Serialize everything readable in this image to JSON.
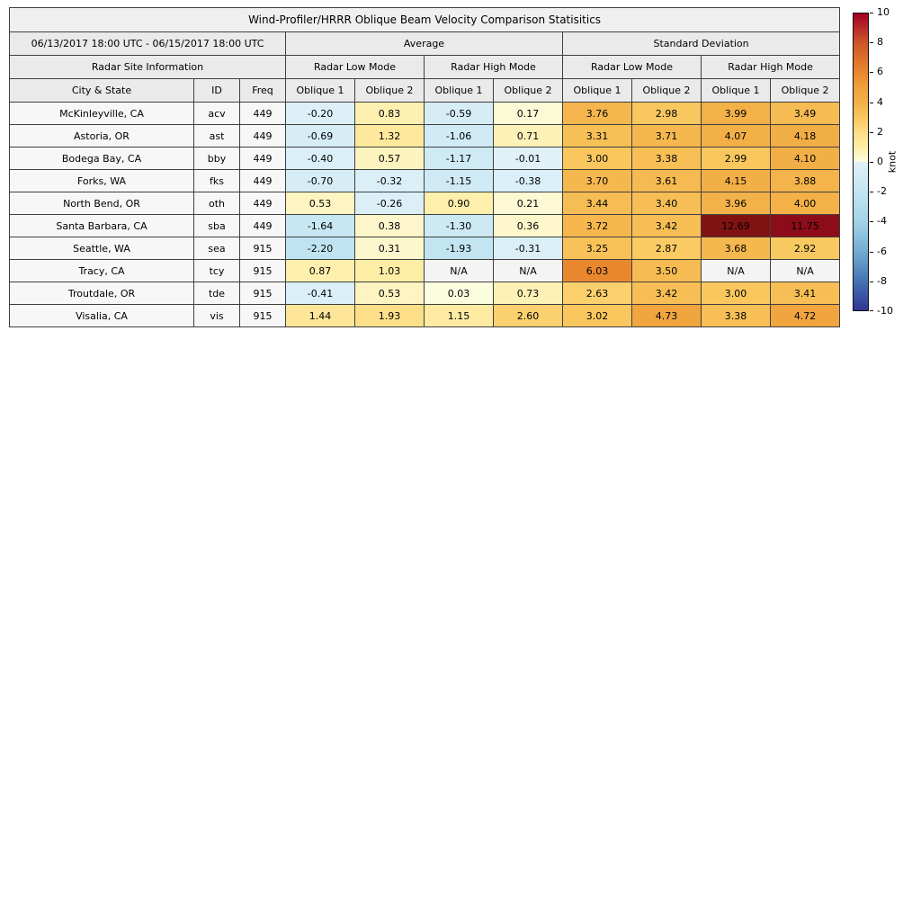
{
  "chart_data": {
    "type": "table",
    "title": "Wind-Profiler/HRRR Oblique Beam Velocity Comparison Statisitics",
    "date_range": "06/13/2017 18:00 UTC - 06/15/2017 18:00 UTC",
    "site_info_header": "Radar Site Information",
    "group_headers": [
      "Average",
      "Standard Deviation"
    ],
    "mode_headers": [
      "Radar Low Mode",
      "Radar High Mode",
      "Radar Low Mode",
      "Radar High Mode"
    ],
    "column_headers": [
      "City & State",
      "ID",
      "Freq",
      "Oblique 1",
      "Oblique 2",
      "Oblique 1",
      "Oblique 2",
      "Oblique 1",
      "Oblique 2",
      "Oblique 1",
      "Oblique 2"
    ],
    "na_label": "N/A",
    "value_format_decimals": 2,
    "rows": [
      {
        "city": "McKinleyville, CA",
        "id": "acv",
        "freq": "449",
        "values": [
          -0.2,
          0.83,
          -0.59,
          0.17,
          3.76,
          2.98,
          3.99,
          3.49
        ]
      },
      {
        "city": "Astoria, OR",
        "id": "ast",
        "freq": "449",
        "values": [
          -0.69,
          1.32,
          -1.06,
          0.71,
          3.31,
          3.71,
          4.07,
          4.18
        ]
      },
      {
        "city": "Bodega Bay, CA",
        "id": "bby",
        "freq": "449",
        "values": [
          -0.4,
          0.57,
          -1.17,
          -0.01,
          3.0,
          3.38,
          2.99,
          4.1
        ]
      },
      {
        "city": "Forks, WA",
        "id": "fks",
        "freq": "449",
        "values": [
          -0.7,
          -0.32,
          -1.15,
          -0.38,
          3.7,
          3.61,
          4.15,
          3.88
        ]
      },
      {
        "city": "North Bend, OR",
        "id": "oth",
        "freq": "449",
        "values": [
          0.53,
          -0.26,
          0.9,
          0.21,
          3.44,
          3.4,
          3.96,
          4.0
        ]
      },
      {
        "city": "Santa Barbara, CA",
        "id": "sba",
        "freq": "449",
        "values": [
          -1.64,
          0.38,
          -1.3,
          0.36,
          3.72,
          3.42,
          12.69,
          11.75
        ]
      },
      {
        "city": "Seattle, WA",
        "id": "sea",
        "freq": "915",
        "values": [
          -2.2,
          0.31,
          -1.93,
          -0.31,
          3.25,
          2.87,
          3.68,
          2.92
        ]
      },
      {
        "city": "Tracy, CA",
        "id": "tcy",
        "freq": "915",
        "values": [
          0.87,
          1.03,
          null,
          null,
          6.03,
          3.5,
          null,
          null
        ]
      },
      {
        "city": "Troutdale, OR",
        "id": "tde",
        "freq": "915",
        "values": [
          -0.41,
          0.53,
          0.03,
          0.73,
          2.63,
          3.42,
          3.0,
          3.41
        ]
      },
      {
        "city": "Visalia, CA",
        "id": "vis",
        "freq": "915",
        "values": [
          1.44,
          1.93,
          1.15,
          2.6,
          3.02,
          4.73,
          3.38,
          4.72
        ]
      }
    ],
    "colorbar": {
      "label": "knot",
      "min": -10,
      "max": 10,
      "ticks": [
        10,
        8,
        6,
        4,
        2,
        0,
        -2,
        -4,
        -6,
        -8,
        -10
      ],
      "colormap": [
        [
          -10,
          "#313695"
        ],
        [
          -8,
          "#4575b4"
        ],
        [
          -6,
          "#74add1"
        ],
        [
          -4,
          "#a3d3e8"
        ],
        [
          -2,
          "#c2e5f2"
        ],
        [
          -0.001,
          "#e0f1f8"
        ],
        [
          0,
          "#fcfce0"
        ],
        [
          1,
          "#feeda6"
        ],
        [
          2,
          "#fede87"
        ],
        [
          3,
          "#f9c75e"
        ],
        [
          4,
          "#f3b148"
        ],
        [
          5,
          "#efa13b"
        ],
        [
          6,
          "#e9882e"
        ],
        [
          8,
          "#cd5629"
        ],
        [
          10,
          "#a50026"
        ],
        [
          13,
          "#7c150f"
        ]
      ]
    }
  }
}
